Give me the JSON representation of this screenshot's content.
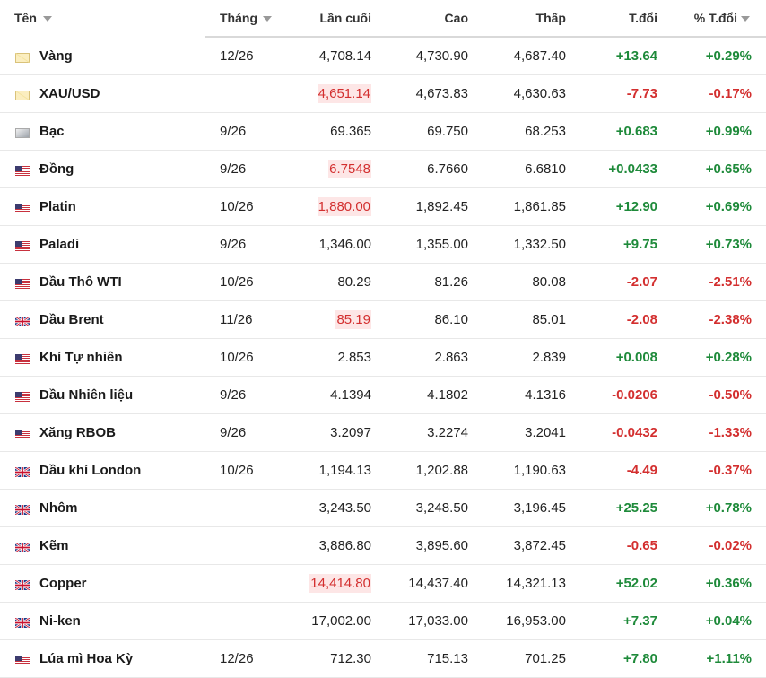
{
  "table": {
    "headers": [
      "Tên",
      "Tháng",
      "Lần cuối",
      "Cao",
      "Thấp",
      "T.đổi",
      "% T.đổi"
    ],
    "rows": [
      [
        "Vàng",
        "12/26",
        "4,708.14",
        "4,730.90",
        "4,687.40",
        "+13.64",
        "+0.29%"
      ],
      [
        "XAU/USD",
        null,
        "4,651.14",
        "4,673.83",
        "4,630.63",
        "-7.73",
        "-0.17%"
      ],
      [
        "Bạc",
        "9/26",
        "69.365",
        "69.750",
        "68.253",
        "+0.683",
        "+0.99%"
      ],
      [
        "Đồng",
        "9/26",
        "6.7548",
        "6.7660",
        "6.6810",
        "+0.0433",
        "+0.65%"
      ],
      [
        "Platin",
        "10/26",
        "1,880.00",
        "1,892.45",
        "1,861.85",
        "+12.90",
        "+0.69%"
      ],
      [
        "Paladi",
        "9/26",
        "1,346.00",
        "1,355.00",
        "1,332.50",
        "+9.75",
        "+0.73%"
      ],
      [
        "Dầu Thô WTI",
        "10/26",
        "80.29",
        "81.26",
        "80.08",
        "-2.07",
        "-2.51%"
      ],
      [
        "Dầu Brent",
        "11/26",
        "85.19",
        "86.10",
        "85.01",
        "-2.08",
        "-2.38%"
      ],
      [
        "Khí Tự nhiên",
        "10/26",
        "2.853",
        "2.863",
        "2.839",
        "+0.008",
        "+0.28%"
      ],
      [
        "Dầu Nhiên liệu",
        "9/26",
        "4.1394",
        "4.1802",
        "4.1316",
        "-0.0206",
        "-0.50%"
      ],
      [
        "Xăng RBOB",
        "9/26",
        "3.2097",
        "3.2274",
        "3.2041",
        "-0.0432",
        "-1.33%"
      ],
      [
        "Dầu khí London",
        "10/26",
        "1,194.13",
        "1,202.88",
        "1,190.63",
        "-4.49",
        "-0.37%"
      ],
      [
        "Nhôm",
        null,
        "3,243.50",
        "3,248.50",
        "3,196.45",
        "+25.25",
        "+0.78%"
      ],
      [
        "Kẽm",
        null,
        "3,886.80",
        "3,895.60",
        "3,872.45",
        "-0.65",
        "-0.02%"
      ],
      [
        "Copper",
        null,
        "14,414.80",
        "14,437.40",
        "14,321.13",
        "+52.02",
        "+0.36%"
      ],
      [
        "Ni-ken",
        null,
        "17,002.00",
        "17,033.00",
        "16,953.00",
        "+7.37",
        "+0.04%"
      ],
      [
        "Lúa mì Hoa Kỳ",
        "12/26",
        "712.30",
        "715.13",
        "701.25",
        "+7.80",
        "+1.11%"
      ]
    ]
  }
}
